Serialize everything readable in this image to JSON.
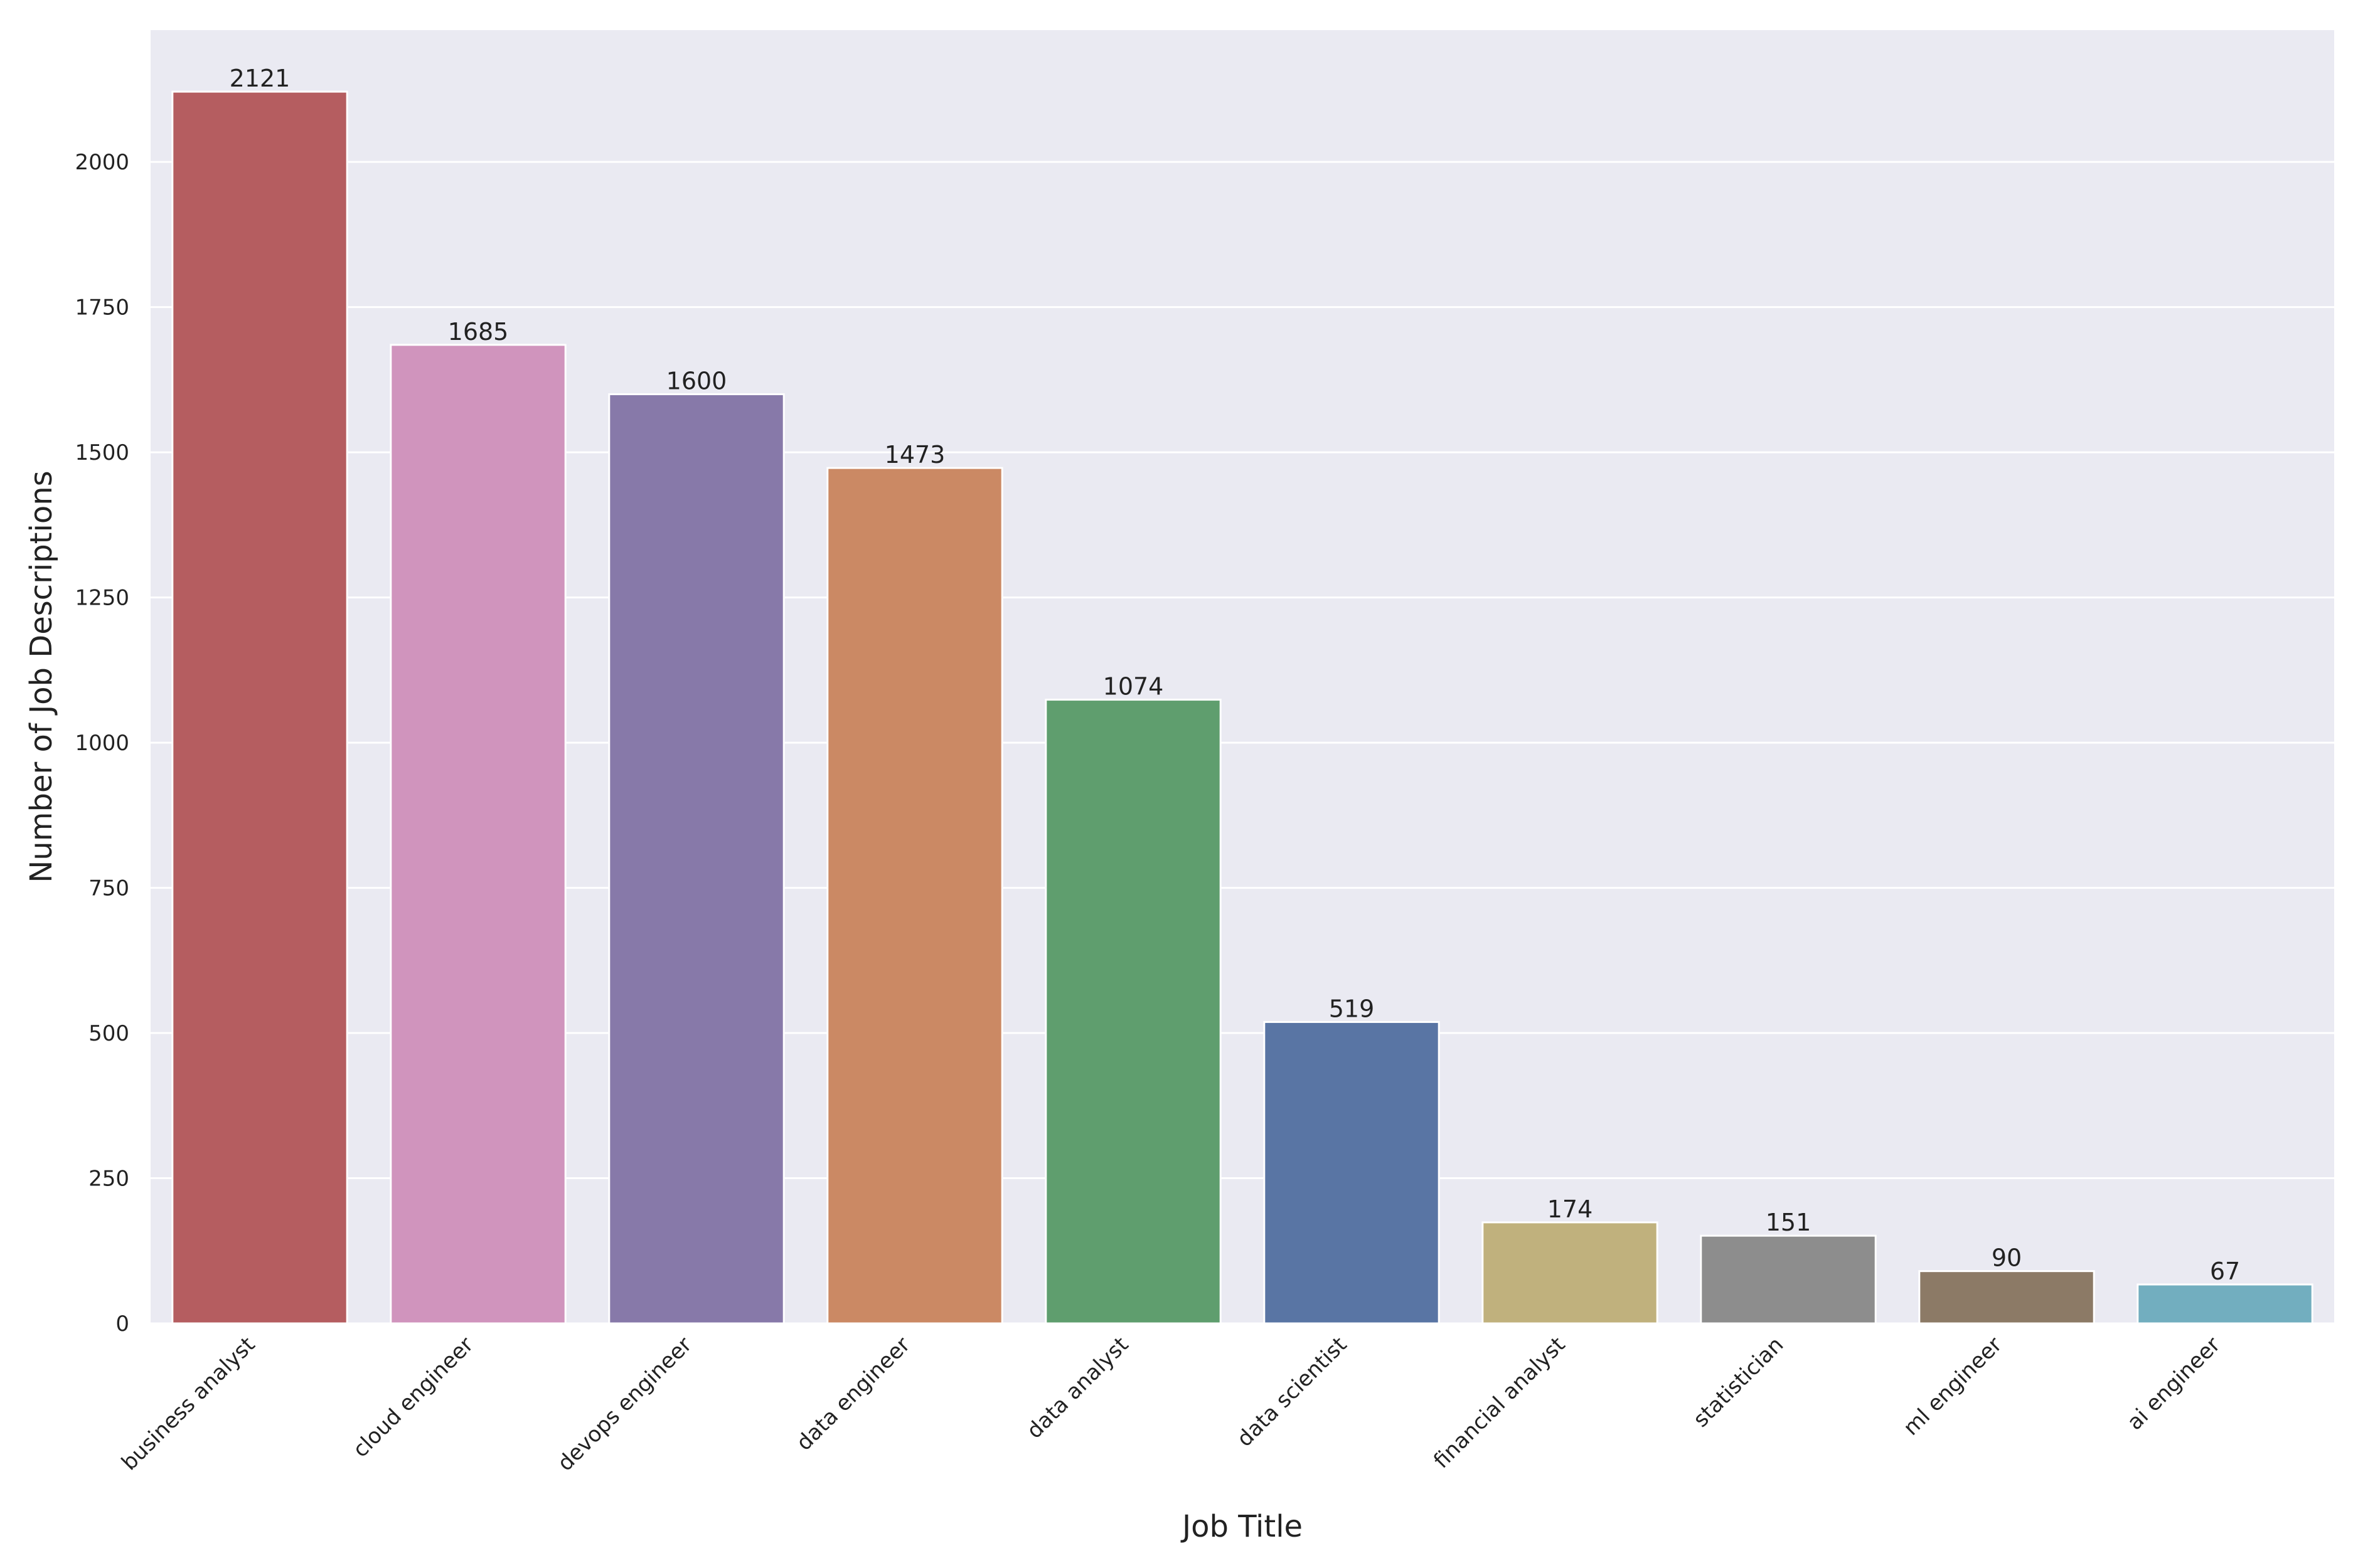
{
  "chart_data": {
    "type": "bar",
    "title": "",
    "xlabel": "Job Title",
    "ylabel": "Number of Job Descriptions",
    "categories": [
      "business analyst",
      "cloud engineer",
      "devops engineer",
      "data engineer",
      "data analyst",
      "data scientist",
      "financial analyst",
      "statistician",
      "ml engineer",
      "ai engineer"
    ],
    "values": [
      2121,
      1685,
      1600,
      1473,
      1074,
      519,
      174,
      151,
      90,
      67
    ],
    "value_labels": [
      "2121",
      "1685",
      "1600",
      "1473",
      "1074",
      "519",
      "174",
      "151",
      "90",
      "67"
    ],
    "colors": [
      "#b55d60",
      "#d094bd",
      "#8779a9",
      "#cb8964",
      "#5f9e6e",
      "#5975a4",
      "#c0b17d",
      "#8d8d8d",
      "#8c7a66",
      "#72aebf"
    ],
    "yticks": [
      0,
      250,
      500,
      750,
      1000,
      1250,
      1500,
      1750,
      2000
    ],
    "ytick_labels": [
      "0",
      "250",
      "500",
      "750",
      "1000",
      "1250",
      "1500",
      "1750",
      "2000"
    ],
    "ylim": [
      0,
      2227
    ],
    "grid": true,
    "background": "#eaeaf2",
    "grid_color": "#ffffff"
  }
}
